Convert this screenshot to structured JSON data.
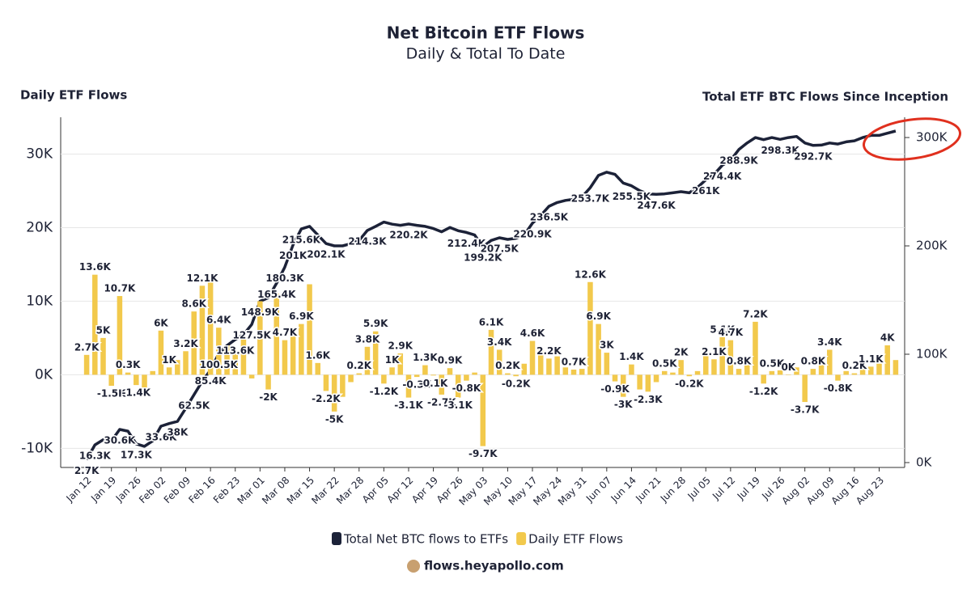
{
  "chart_data": {
    "type": "combo",
    "title": "Net Bitcoin ETF Flows",
    "subtitle": "Daily & Total To Date",
    "y_label": "Daily ETF Flows",
    "y2_label": "Total ETF BTC Flows Since Inception",
    "source": "flows.heyapollo.com",
    "categories": [
      "Jan 12",
      null,
      null,
      "Jan 19",
      null,
      null,
      "Jan 26",
      null,
      null,
      "Feb 02",
      null,
      null,
      "Feb 09",
      null,
      null,
      "Feb 16",
      null,
      null,
      "Feb 23",
      null,
      null,
      "Mar 01",
      null,
      null,
      "Mar 08",
      null,
      null,
      "Mar 15",
      null,
      null,
      "Mar 22",
      null,
      null,
      "Mar 28",
      null,
      null,
      "Apr 05",
      null,
      null,
      "Apr 12",
      null,
      null,
      "Apr 19",
      null,
      null,
      "Apr 26",
      null,
      null,
      "May 03",
      null,
      null,
      "May 10",
      null,
      null,
      "May 17",
      null,
      null,
      "May 24",
      null,
      null,
      "May 31",
      null,
      null,
      "Jun 07",
      null,
      null,
      "Jun 14",
      null,
      null,
      "Jun 21",
      null,
      null,
      "Jun 28",
      null,
      null,
      "Jul 05",
      null,
      null,
      "Jul 12",
      null,
      null,
      "Jul 19",
      null,
      null,
      "Jul 26",
      null,
      null,
      "Aug 02",
      null,
      null,
      "Aug 09",
      null,
      null,
      "Aug 16",
      null,
      null,
      "Aug 23",
      null,
      null
    ],
    "series": [
      {
        "name": "Total Net BTC flows to ETFs",
        "type": "line",
        "axis": "y2",
        "color": "#1c2238",
        "values": [
          2700,
          16300,
          21000,
          20000,
          30600,
          29000,
          17300,
          15000,
          20000,
          33600,
          36000,
          38000,
          50000,
          62500,
          75000,
          85400,
          100500,
          108000,
          113600,
          118000,
          127500,
          148900,
          152000,
          165400,
          180300,
          201000,
          215600,
          218000,
          210000,
          202100,
          200000,
          200000,
          202000,
          205000,
          214300,
          218000,
          222000,
          220000,
          219000,
          220200,
          219000,
          218000,
          216000,
          213000,
          217000,
          214000,
          212400,
          210000,
          199200,
          205000,
          207500,
          206000,
          207000,
          210000,
          220900,
          228000,
          236500,
          240000,
          242000,
          243000,
          245000,
          253700,
          265000,
          268000,
          266000,
          258000,
          255500,
          251000,
          248000,
          247600,
          248000,
          249000,
          250000,
          249000,
          254000,
          261000,
          266000,
          274400,
          279000,
          288900,
          295000,
          300000,
          298000,
          300000,
          298300,
          300000,
          301000,
          295000,
          292700,
          293000,
          295000,
          294000,
          296000,
          297000,
          300000,
          302000,
          302000,
          304000,
          306000
        ],
        "value_labels": [
          "2.7K",
          "16.3K",
          null,
          null,
          "30.6K",
          null,
          "17.3K",
          null,
          null,
          "33.6K",
          null,
          "38K",
          null,
          "62.5K",
          null,
          "85.4K",
          "100.5K",
          null,
          "113.6K",
          null,
          "127.5K",
          "148.9K",
          null,
          "165.4K",
          "180.3K",
          "201K",
          "215.6K",
          null,
          null,
          "202.1K",
          null,
          null,
          null,
          null,
          "214.3K",
          null,
          null,
          null,
          null,
          "220.2K",
          null,
          null,
          null,
          null,
          null,
          null,
          "212.4K",
          null,
          "199.2K",
          null,
          "207.5K",
          null,
          null,
          null,
          "220.9K",
          null,
          "236.5K",
          null,
          null,
          null,
          null,
          "253.7K",
          null,
          null,
          null,
          null,
          "255.5K",
          null,
          null,
          "247.6K",
          null,
          null,
          null,
          null,
          null,
          "261K",
          null,
          "274.4K",
          null,
          "288.9K",
          null,
          null,
          null,
          null,
          "298.3K",
          null,
          null,
          null,
          "292.7K",
          null,
          null,
          null,
          null,
          null,
          null,
          null,
          null,
          null,
          null
        ]
      },
      {
        "name": "Daily ETF Flows",
        "type": "bar",
        "color": "#f2c94c",
        "values": [
          2700,
          13600,
          5000,
          -1500,
          10700,
          300,
          -1400,
          -2500,
          500,
          6000,
          1000,
          2000,
          3200,
          8600,
          12100,
          12800,
          6400,
          4000,
          3000,
          5000,
          -500,
          10000,
          -2000,
          11000,
          4700,
          6000,
          6900,
          12300,
          1600,
          -2200,
          -5000,
          -3000,
          -1000,
          200,
          3800,
          5900,
          -1200,
          1000,
          2900,
          -3100,
          -300,
          1300,
          -100,
          -2700,
          900,
          -3100,
          -800,
          300,
          -9700,
          6100,
          3400,
          200,
          -200,
          1500,
          4600,
          3500,
          2200,
          2500,
          1000,
          700,
          800,
          12600,
          6900,
          3000,
          -900,
          -3000,
          1400,
          -2000,
          -2300,
          -1000,
          500,
          300,
          2000,
          -200,
          500,
          3000,
          2100,
          5100,
          4700,
          800,
          2000,
          7200,
          -1200,
          500,
          600,
          0,
          1000,
          -3700,
          800,
          1500,
          3400,
          -800,
          500,
          200,
          1500,
          1100,
          1500,
          4000,
          2000
        ],
        "value_labels": [
          "2.7K",
          "13.6K",
          "5K",
          "-1.5K",
          "10.7K",
          "0.3K",
          "-1.4K",
          null,
          null,
          "6K",
          "1K",
          null,
          "3.2K",
          "8.6K",
          "12.1K",
          null,
          "6.4K",
          null,
          null,
          null,
          null,
          null,
          "-2K",
          null,
          "4.7K",
          null,
          "6.9K",
          null,
          "1.6K",
          "-2.2K",
          "-5K",
          null,
          null,
          "0.2K",
          "3.8K",
          "5.9K",
          "-1.2K",
          "1K",
          "2.9K",
          "-3.1K",
          "-0.3K",
          "1.3K",
          "-0.1K",
          "-2.7K",
          "0.9K",
          "-3.1K",
          "-0.8K",
          null,
          "-9.7K",
          "6.1K",
          "3.4K",
          "0.2K",
          "-0.2K",
          null,
          "4.6K",
          null,
          "2.2K",
          null,
          null,
          "0.7K",
          null,
          "12.6K",
          "6.9K",
          "3K",
          "-0.9K",
          "-3K",
          "1.4K",
          null,
          "-2.3K",
          null,
          "0.5K",
          null,
          "2K",
          "-0.2K",
          null,
          null,
          "2.1K",
          "5.1K",
          "4.7K",
          "0.8K",
          null,
          "7.2K",
          "-1.2K",
          "0.5K",
          null,
          "0K",
          null,
          "-3.7K",
          "0.8K",
          null,
          "3.4K",
          "-0.8K",
          null,
          "0.2K",
          null,
          "1.1K",
          null,
          "4K",
          null
        ]
      }
    ],
    "ylim": [
      -12600,
      35000
    ],
    "yticks": [
      {
        "value": -10000,
        "label": "-10K"
      },
      {
        "value": 0,
        "label": "0K"
      },
      {
        "value": 10000,
        "label": "10K"
      },
      {
        "value": 20000,
        "label": "20K"
      },
      {
        "value": 30000,
        "label": "30K"
      }
    ],
    "y2lim": [
      -4500,
      318700
    ],
    "y2ticks": [
      {
        "value": 0,
        "label": "0K"
      },
      {
        "value": 100000,
        "label": "100K"
      },
      {
        "value": 200000,
        "label": "200K"
      },
      {
        "value": 300000,
        "label": "300K"
      }
    ],
    "grid": true,
    "legend": "bottom"
  }
}
